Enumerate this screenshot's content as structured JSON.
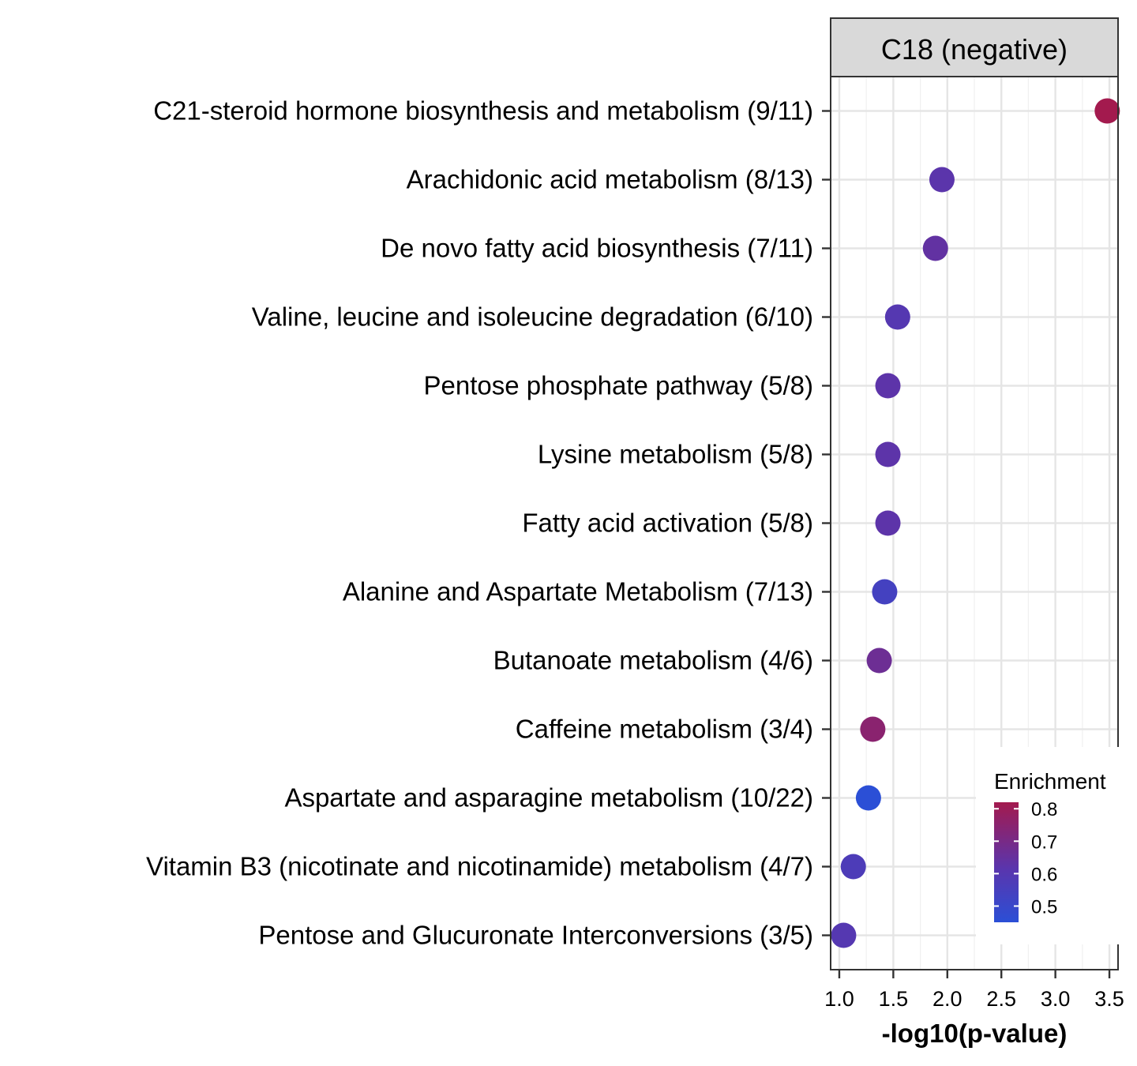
{
  "chart_data": {
    "type": "scatter",
    "facet_label": "C18 (negative)",
    "xlabel": "-log10(p-value)",
    "ylabel": "",
    "xlim": [
      0.92,
      3.58
    ],
    "xticks": [
      1.0,
      1.5,
      2.0,
      2.5,
      3.0,
      3.5
    ],
    "xtick_labels": [
      "1.0",
      "1.5",
      "2.0",
      "2.5",
      "3.0",
      "3.5"
    ],
    "grid": true,
    "categories": [
      "C21-steroid hormone biosynthesis and metabolism (9/11)",
      "Arachidonic acid metabolism (8/13)",
      "De novo fatty acid biosynthesis (7/11)",
      "Valine, leucine and isoleucine degradation (6/10)",
      "Pentose phosphate pathway (5/8)",
      "Lysine metabolism (5/8)",
      "Fatty acid activation (5/8)",
      "Alanine and Aspartate Metabolism (7/13)",
      "Butanoate metabolism (4/6)",
      "Caffeine metabolism (3/4)",
      "Aspartate and asparagine metabolism (10/22)",
      "Vitamin B3 (nicotinate and nicotinamide) metabolism (4/7)",
      "Pentose and Glucuronate Interconversions (3/5)"
    ],
    "x": [
      3.48,
      1.95,
      1.89,
      1.54,
      1.45,
      1.45,
      1.45,
      1.42,
      1.37,
      1.31,
      1.27,
      1.13,
      1.04
    ],
    "enrichment": [
      0.82,
      0.62,
      0.64,
      0.6,
      0.625,
      0.625,
      0.625,
      0.54,
      0.67,
      0.75,
      0.45,
      0.57,
      0.6
    ],
    "legend": {
      "title": "Enrichment",
      "position": "bottom-right",
      "ticks": [
        0.8,
        0.7,
        0.6,
        0.5
      ],
      "tick_labels": [
        "0.8",
        "0.7",
        "0.6",
        "0.5"
      ],
      "range": [
        0.45,
        0.82
      ],
      "color_low": "#2b4fd6",
      "color_high": "#a31a4e"
    }
  }
}
